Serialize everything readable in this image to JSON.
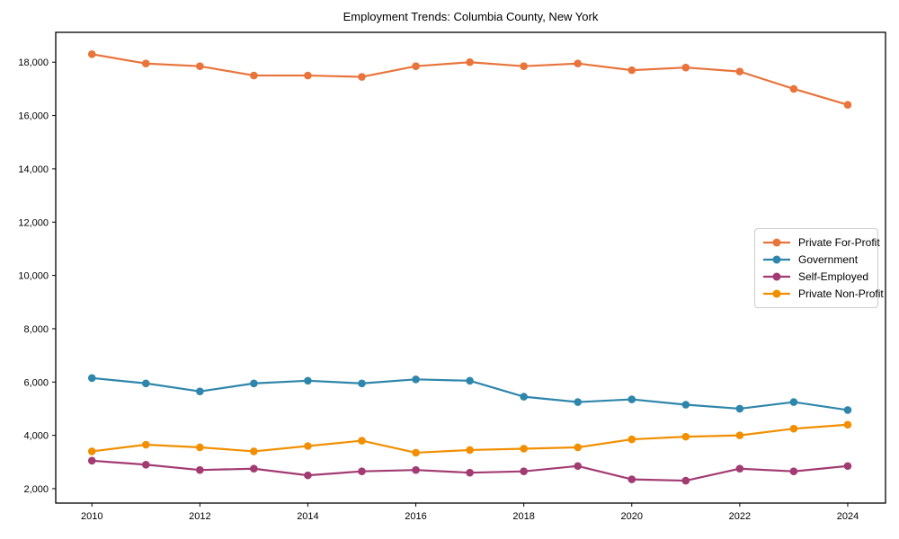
{
  "chart_data": {
    "type": "line",
    "title": "Employment Trends: Columbia County, New York",
    "xlabel": "",
    "ylabel": "",
    "grid": false,
    "legend_position": "center-right",
    "x": [
      2010,
      2011,
      2012,
      2013,
      2014,
      2015,
      2016,
      2017,
      2018,
      2019,
      2020,
      2021,
      2022,
      2023,
      2024
    ],
    "xticks": [
      2010,
      2012,
      2014,
      2016,
      2018,
      2020,
      2022,
      2024
    ],
    "xtick_labels": [
      "2010",
      "2012",
      "2014",
      "2016",
      "2018",
      "2020",
      "2022",
      "2024"
    ],
    "xlim": [
      2009.33,
      2024.7
    ],
    "yticks": [
      2000,
      4000,
      6000,
      8000,
      10000,
      12000,
      14000,
      16000,
      18000
    ],
    "ytick_labels": [
      "2,000",
      "4,000",
      "6,000",
      "8,000",
      "10,000",
      "12,000",
      "14,000",
      "16,000",
      "18,000"
    ],
    "ylim": [
      1460,
      19120
    ],
    "series": [
      {
        "name": "Private For-Profit",
        "color": "#E8743B",
        "values": [
          18300,
          17950,
          17850,
          17500,
          17500,
          17450,
          17850,
          18000,
          17850,
          17950,
          17700,
          17800,
          17650,
          17000,
          16400
        ]
      },
      {
        "name": "Government",
        "color": "#2E86AB",
        "values": [
          6150,
          5950,
          5650,
          5950,
          6050,
          5950,
          6100,
          6050,
          5450,
          5250,
          5350,
          5150,
          5000,
          5250,
          4950
        ]
      },
      {
        "name": "Self-Employed",
        "color": "#A23B72",
        "values": [
          3050,
          2900,
          2700,
          2750,
          2500,
          2650,
          2700,
          2600,
          2650,
          2850,
          2350,
          2300,
          2750,
          2650,
          2850
        ]
      },
      {
        "name": "Private Non-Profit",
        "color": "#F18F01",
        "values": [
          3400,
          3650,
          3550,
          3400,
          3600,
          3800,
          3350,
          3450,
          3500,
          3550,
          3850,
          3950,
          4000,
          4250,
          4400
        ]
      }
    ]
  }
}
